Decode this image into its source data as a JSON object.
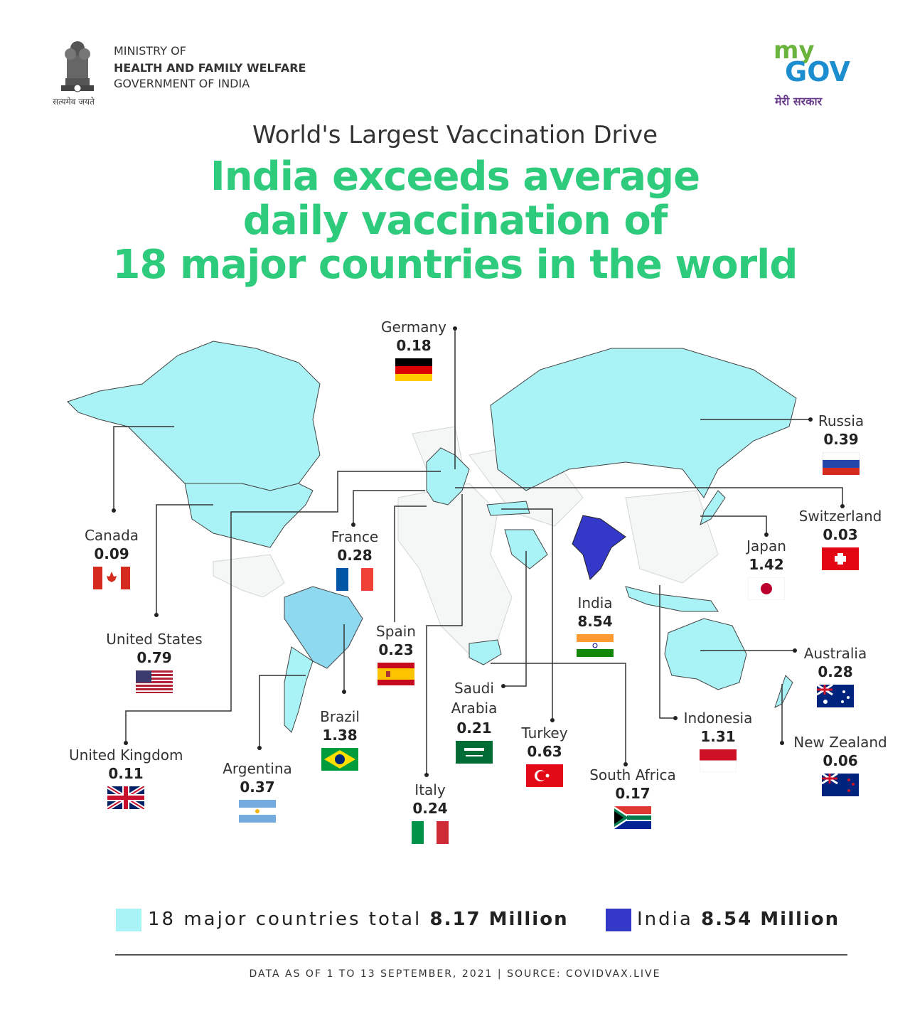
{
  "header": {
    "ministry_line1": "MINISTRY OF",
    "ministry_line2": "HEALTH AND FAMILY WELFARE",
    "ministry_line3": "GOVERNMENT OF INDIA",
    "emblem_caption": "सत्यमेव जयते",
    "mygov_my": "my",
    "mygov_gov": "GOV",
    "mygov_hindi": "मेरी सरकार"
  },
  "subtitle": "World's Largest Vaccination Drive",
  "headline": {
    "line1": "India exceeds average",
    "line2": "daily vaccination of",
    "line3": "18 major countries in the world"
  },
  "colors": {
    "headline": "#2ecb7d",
    "countries_fill": "#a9f2f5",
    "india_fill": "#3338c9",
    "brazil_fill": "#8ed9f0"
  },
  "countries": [
    {
      "name": "Germany",
      "value": "0.18",
      "flag": "germany"
    },
    {
      "name": "Russia",
      "value": "0.39",
      "flag": "russia"
    },
    {
      "name": "Switzerland",
      "value": "0.03",
      "flag": "switzerland"
    },
    {
      "name": "Japan",
      "value": "1.42",
      "flag": "japan"
    },
    {
      "name": "Canada",
      "value": "0.09",
      "flag": "canada"
    },
    {
      "name": "France",
      "value": "0.28",
      "flag": "france"
    },
    {
      "name": "India",
      "value": "8.54",
      "flag": "india"
    },
    {
      "name": "United States",
      "value": "0.79",
      "flag": "united-states"
    },
    {
      "name": "Spain",
      "value": "0.23",
      "flag": "spain"
    },
    {
      "name": "Australia",
      "value": "0.28",
      "flag": "australia"
    },
    {
      "name": "Saudi Arabia",
      "value": "0.21",
      "flag": "saudi-arabia"
    },
    {
      "name": "Brazil",
      "value": "1.38",
      "flag": "brazil"
    },
    {
      "name": "Indonesia",
      "value": "1.31",
      "flag": "indonesia"
    },
    {
      "name": "Turkey",
      "value": "0.63",
      "flag": "turkey"
    },
    {
      "name": "New Zealand",
      "value": "0.06",
      "flag": "new-zealand"
    },
    {
      "name": "United Kingdom",
      "value": "0.11",
      "flag": "united-kingdom"
    },
    {
      "name": "Argentina",
      "value": "0.37",
      "flag": "argentina"
    },
    {
      "name": "South Africa",
      "value": "0.17",
      "flag": "south-africa"
    },
    {
      "name": "Italy",
      "value": "0.24",
      "flag": "italy"
    }
  ],
  "legend": {
    "group_label": "18 major countries total",
    "group_value": "8.17 Million",
    "india_label": "India",
    "india_value": "8.54 Million"
  },
  "source": "DATA AS OF 1 TO 13 SEPTEMBER, 2021  |  SOURCE: COVIDVAX.LIVE"
}
